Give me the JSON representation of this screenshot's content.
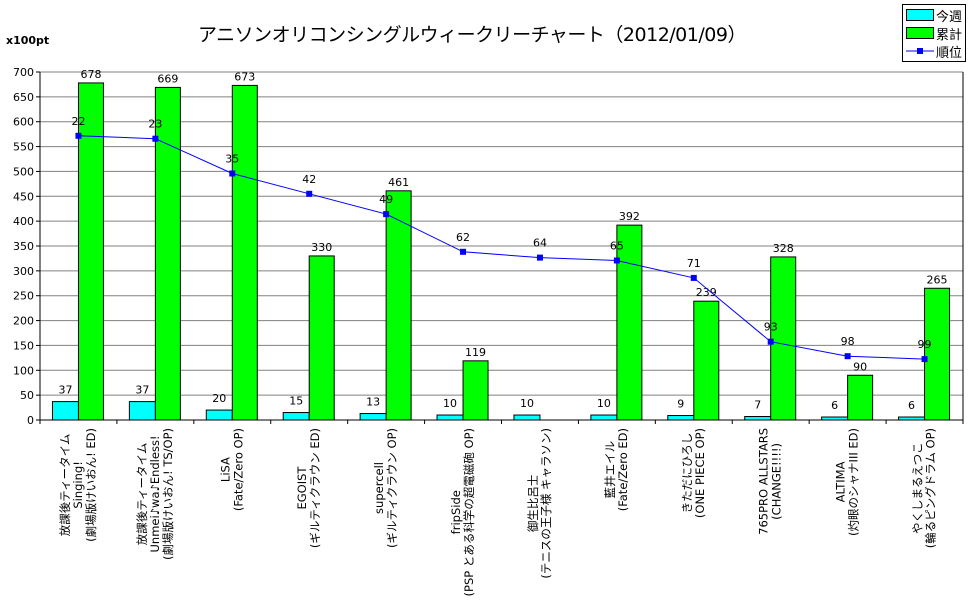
{
  "chart_data": {
    "type": "bar",
    "title": "アニソンオリコンシングルウィークリーチャート（2012/01/09）",
    "ylabel": "x100pt",
    "ylim": [
      0,
      700
    ],
    "yticks": [
      0,
      50,
      100,
      150,
      200,
      250,
      300,
      350,
      400,
      450,
      500,
      550,
      600,
      650,
      700
    ],
    "rank_axis_range": [
      0,
      120
    ],
    "rank_axis_reversed": true,
    "grid": true,
    "legend_position": "top-right",
    "categories": [
      "放課後ティータイム\nSinging!\n(劇場版けいおん! ED)",
      "放課後ティータイム\nUnmei♪wa♪Endless!\n(劇場版けいおん! TS/OP)",
      "LiSA\n(Fate/Zero OP)",
      "EGOIST\n(ギルティクラウン ED)",
      "supercell\n(ギルティクラウン OP)",
      "fripSide\n(PSP とある科学の超電磁砲 OP)",
      "御生比呂士\n(テニスの王子様 キャラソン)",
      "藍井エイル\n(Fate/Zero ED)",
      "きただにひろし\n(ONE PIECE OP)",
      "765PRO ALLSTARS\n(CHANGE!!!!)",
      "ALTIMA\n(灼眼のシャナIII ED)",
      "やくしまるえつこ\n(輪るピングドラム OP)"
    ],
    "series": [
      {
        "name": "今週",
        "type": "bar",
        "color": "#00ffff",
        "values": [
          37,
          37,
          20,
          15,
          13,
          10,
          10,
          10,
          9,
          7,
          6,
          6
        ]
      },
      {
        "name": "累計",
        "type": "bar",
        "color": "#00ff00",
        "values": [
          678,
          669,
          673,
          330,
          461,
          119,
          null,
          392,
          239,
          328,
          90,
          265
        ]
      },
      {
        "name": "順位",
        "type": "line",
        "color": "#0000ff",
        "values": [
          22,
          23,
          35,
          42,
          49,
          62,
          64,
          65,
          71,
          93,
          98,
          99
        ]
      }
    ]
  }
}
